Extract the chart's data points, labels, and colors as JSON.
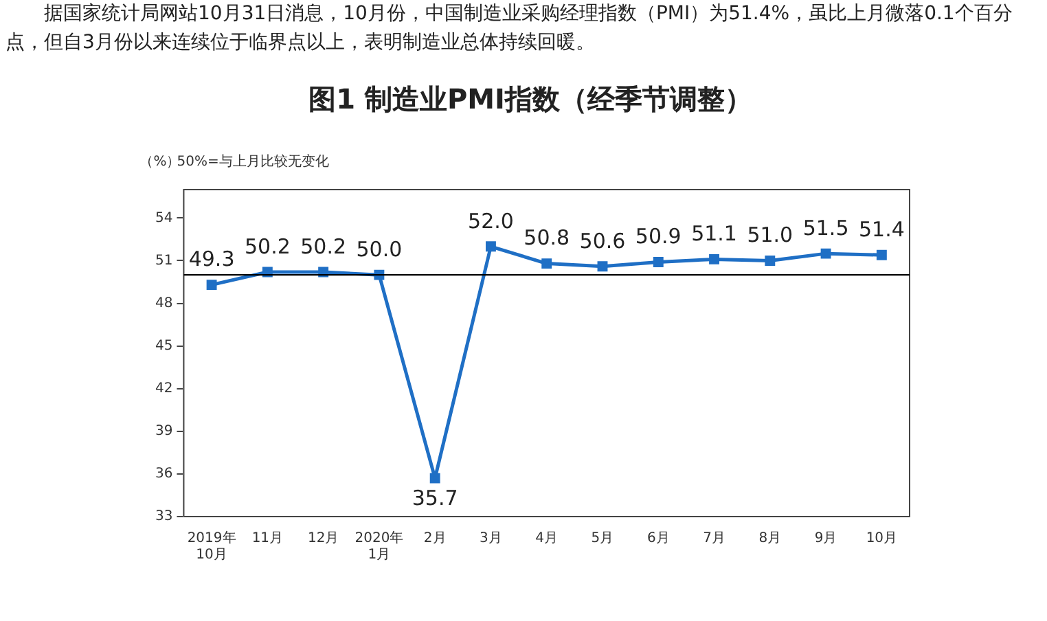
{
  "chart_data": {
    "type": "line",
    "title": "图1 制造业PMI指数（经季节调整）",
    "ylabel": "（%）",
    "annotations": [
      "据国家统计局网站10月31日消息，10月份，中国制造业采购经理指数（PMI）为51.4%，虽比上月微落0.1个百分点，但自3月份以来连续位于临界点以上，表明制造业总体持续回暖。",
      "50%=与上月比较无变化"
    ],
    "categories": [
      "2019年\n10月",
      "11月",
      "12月",
      "2020年\n1月",
      "2月",
      "3月",
      "4月",
      "5月",
      "6月",
      "7月",
      "8月",
      "9月",
      "10月"
    ],
    "series": [
      {
        "color": "#1f6fc5",
        "values": [
          49.3,
          50.2,
          50.2,
          50.0,
          35.7,
          52.0,
          50.8,
          50.6,
          50.9,
          51.1,
          51.0,
          51.5,
          51.4
        ],
        "value_labels": [
          "49.3",
          "50.2",
          "50.2",
          "50.0",
          "35.7",
          "52.0",
          "50.8",
          "50.6",
          "50.9",
          "51.1",
          "51.0",
          "51.5",
          "51.4"
        ]
      }
    ],
    "ylim": [
      33,
      56
    ],
    "yticks": [
      33,
      36,
      39,
      42,
      45,
      48,
      51,
      54
    ],
    "ref_lines": [
      {
        "axis": "y",
        "value": 50,
        "color": "#000000"
      }
    ],
    "marker": "square",
    "line_style": "solid",
    "grid": false,
    "legend": false
  }
}
